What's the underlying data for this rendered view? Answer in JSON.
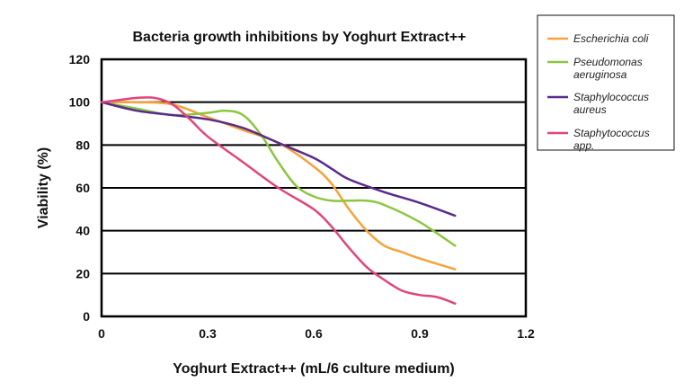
{
  "chart_data": {
    "type": "line",
    "title": "Bacteria growth inhibitions by Yoghurt Extract++",
    "xlabel": "Yoghurt Extract++ (mL/6 culture medium)",
    "ylabel": "Viability (%)",
    "xlim": [
      0,
      1.2
    ],
    "ylim": [
      0,
      120
    ],
    "xticks": [
      0,
      0.3,
      0.6,
      0.9,
      1.2
    ],
    "xtick_labels": [
      "0",
      "0.3",
      "0.6",
      "0.9",
      "1.2"
    ],
    "yticks": [
      0,
      20,
      40,
      60,
      80,
      100,
      120
    ],
    "ytick_labels": [
      "0",
      "20",
      "40",
      "60",
      "80",
      "100",
      "120"
    ],
    "grid": "horizontal",
    "legend_position": "right",
    "series": [
      {
        "name_lines": [
          "Escherichia coli"
        ],
        "color": "#F5A23A",
        "x": [
          0,
          0.1,
          0.2,
          0.3,
          0.4,
          0.5,
          0.6,
          0.65,
          0.7,
          0.75,
          0.8,
          0.85,
          0.9,
          1.0
        ],
        "y": [
          100,
          100,
          99,
          93,
          87,
          81,
          70,
          62,
          50,
          40,
          33,
          30,
          27,
          22
        ]
      },
      {
        "name_lines": [
          "Pseudomonas",
          "aeruginosa"
        ],
        "color": "#8CC63F",
        "x": [
          0,
          0.1,
          0.2,
          0.3,
          0.35,
          0.4,
          0.45,
          0.5,
          0.55,
          0.6,
          0.65,
          0.7,
          0.75,
          0.8,
          0.9,
          1.0
        ],
        "y": [
          100,
          97,
          94,
          95,
          96,
          94,
          85,
          72,
          61,
          56,
          54,
          54,
          54,
          52,
          44,
          33
        ]
      },
      {
        "name_lines": [
          "Staphylococcus",
          "aureus"
        ],
        "color": "#5B2A8E",
        "x": [
          0,
          0.1,
          0.2,
          0.3,
          0.4,
          0.5,
          0.6,
          0.65,
          0.7,
          0.8,
          0.9,
          1.0
        ],
        "y": [
          100,
          96,
          94,
          92,
          88,
          81,
          74,
          69,
          64,
          58,
          53,
          47
        ]
      },
      {
        "name_lines": [
          "Staphytococcus",
          "app."
        ],
        "color": "#E0457B",
        "x": [
          0,
          0.05,
          0.1,
          0.15,
          0.2,
          0.25,
          0.3,
          0.4,
          0.5,
          0.6,
          0.65,
          0.7,
          0.75,
          0.8,
          0.85,
          0.9,
          0.95,
          1.0
        ],
        "y": [
          100,
          101,
          102,
          102,
          99,
          92,
          84,
          72,
          60,
          50,
          42,
          32,
          23,
          17,
          12,
          10,
          9,
          6
        ]
      }
    ]
  }
}
